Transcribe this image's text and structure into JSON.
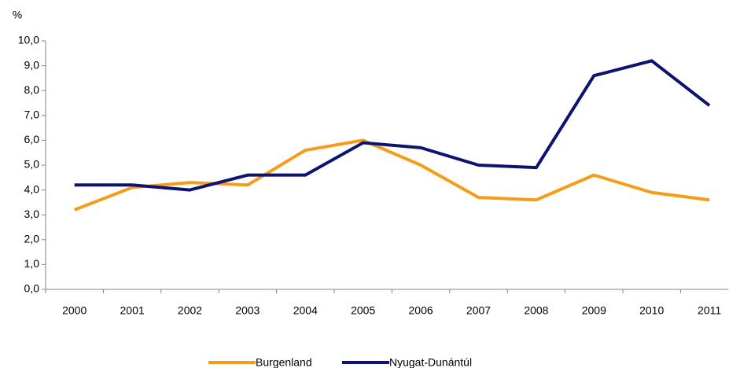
{
  "chart_data": {
    "type": "line",
    "y_label": "%",
    "categories": [
      "2000",
      "2001",
      "2002",
      "2003",
      "2004",
      "2005",
      "2006",
      "2007",
      "2008",
      "2009",
      "2010",
      "2011"
    ],
    "series": [
      {
        "name": "Burgenland",
        "color": "#f59d1a",
        "values": [
          3.2,
          4.1,
          4.3,
          4.2,
          5.6,
          6.0,
          5.0,
          3.7,
          3.6,
          4.6,
          3.9,
          3.6
        ]
      },
      {
        "name": "Nyugat-Dunántúl",
        "color": "#0d1370",
        "values": [
          4.2,
          4.2,
          4.0,
          4.6,
          4.6,
          5.9,
          5.7,
          5.0,
          4.9,
          8.6,
          9.2,
          7.4
        ]
      }
    ],
    "ylim": [
      0,
      10
    ],
    "yticks": [
      {
        "value": 0,
        "label": "0,0"
      },
      {
        "value": 1,
        "label": "1,0"
      },
      {
        "value": 2,
        "label": "2,0"
      },
      {
        "value": 3,
        "label": "3,0"
      },
      {
        "value": 4,
        "label": "4,0"
      },
      {
        "value": 5,
        "label": "5,0"
      },
      {
        "value": 6,
        "label": "6,0"
      },
      {
        "value": 7,
        "label": "7,0"
      },
      {
        "value": 8,
        "label": "8,0"
      },
      {
        "value": 9,
        "label": "9,0"
      },
      {
        "value": 10,
        "label": "10,0"
      }
    ],
    "grid": false,
    "legend": "bottom"
  }
}
